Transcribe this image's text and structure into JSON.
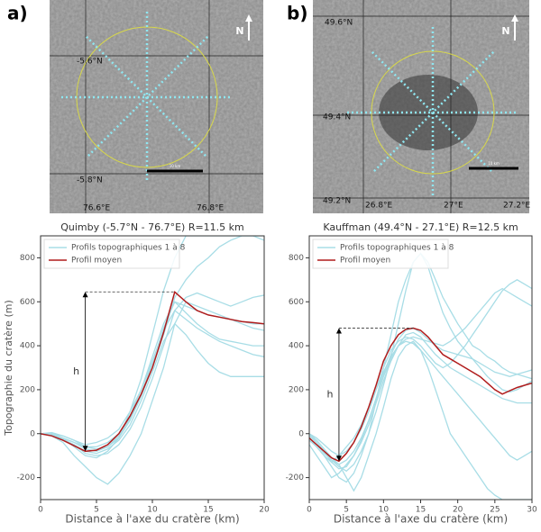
{
  "panels": [
    {
      "label": "a)",
      "north": "N",
      "scale": "10 km",
      "coords": [
        "-5.6°N",
        "-5.8°N",
        "76.6°E",
        "76.8°E"
      ]
    },
    {
      "label": "b)",
      "north": "N",
      "scale": "10 km",
      "coords": [
        "49.6°N",
        "49.4°N",
        "49.2°N",
        "26.8°E",
        "27°E",
        "27.2°E"
      ]
    }
  ],
  "chart_data": [
    {
      "type": "line",
      "title": "Quimby (-5.7°N - 76.7°E) R=11.5 km",
      "x_label": "Distance à l'axe du cratère (km)",
      "y_label": "Topographie du cratère (m)",
      "annotation": "h",
      "legend": "upper left",
      "xlim": [
        0,
        20
      ],
      "xticks": [
        0,
        5,
        10,
        15,
        20
      ],
      "ylim": [
        -300,
        900
      ],
      "yticks": [
        -200,
        0,
        200,
        400,
        600,
        800
      ],
      "x": [
        0,
        1,
        2,
        3,
        4,
        5,
        6,
        7,
        8,
        9,
        10,
        11,
        12,
        13,
        14,
        15,
        16,
        17,
        18,
        19,
        20
      ],
      "series": [
        {
          "name": "Profils topographiques 1 à 8",
          "color": "#a8dde6",
          "profiles": [
            [
              0,
              0,
              -20,
              -60,
              -100,
              -110,
              -80,
              -20,
              100,
              250,
              450,
              650,
              800,
              900,
              900,
              900,
              900,
              900,
              900,
              900,
              900
            ],
            [
              0,
              -10,
              -40,
              -100,
              -150,
              -200,
              -230,
              -180,
              -100,
              0,
              150,
              300,
              500,
              600,
              580,
              560,
              540,
              520,
              500,
              480,
              470
            ],
            [
              0,
              -5,
              -20,
              -40,
              -60,
              -60,
              -40,
              0,
              80,
              200,
              350,
              500,
              600,
              550,
              500,
              460,
              430,
              420,
              410,
              400,
              400
            ],
            [
              0,
              0,
              -10,
              -30,
              -50,
              -40,
              -20,
              20,
              100,
              200,
              330,
              470,
              560,
              520,
              480,
              450,
              420,
              400,
              380,
              360,
              350
            ],
            [
              0,
              -10,
              -30,
              -50,
              -80,
              -90,
              -70,
              -30,
              40,
              150,
              280,
              420,
              500,
              450,
              380,
              320,
              280,
              260,
              260,
              260,
              260
            ],
            [
              0,
              0,
              -20,
              -40,
              -70,
              -80,
              -60,
              -10,
              70,
              180,
              320,
              480,
              600,
              580,
              560,
              540,
              530,
              520,
              510,
              500,
              500
            ],
            [
              0,
              5,
              -10,
              -30,
              -60,
              -70,
              -60,
              -20,
              60,
              170,
              300,
              450,
              620,
              700,
              760,
              800,
              850,
              880,
              900,
              900,
              880
            ],
            [
              0,
              -5,
              -25,
              -50,
              -90,
              -100,
              -90,
              -50,
              20,
              120,
              250,
              400,
              560,
              620,
              640,
              620,
              600,
              580,
              600,
              620,
              630
            ]
          ]
        },
        {
          "name": "Profil moyen",
          "color": "#b01c1c",
          "values": [
            0,
            -10,
            -30,
            -55,
            -80,
            -75,
            -50,
            0,
            80,
            180,
            300,
            460,
            645,
            600,
            560,
            540,
            530,
            520,
            510,
            505,
            500
          ]
        }
      ]
    },
    {
      "type": "line",
      "title": "Kauffman (49.4°N - 27.1°E) R=12.5 km",
      "x_label": "Distance à l'axe du cratère (km)",
      "annotation": "h",
      "legend": "upper left",
      "xlim": [
        0,
        30
      ],
      "xticks": [
        0,
        5,
        10,
        15,
        20,
        25,
        30
      ],
      "ylim": [
        -300,
        900
      ],
      "yticks": [
        -200,
        0,
        200,
        400,
        600,
        800
      ],
      "x": [
        0,
        1,
        2,
        3,
        4,
        5,
        6,
        7,
        8,
        9,
        10,
        11,
        12,
        13,
        14,
        15,
        16,
        17,
        18,
        19,
        20,
        21,
        22,
        23,
        24,
        25,
        26,
        27,
        28,
        29,
        30
      ],
      "series": [
        {
          "name": "Profils topographiques 1 à 8",
          "color": "#a8dde6",
          "profiles": [
            [
              -20,
              -60,
              -100,
              -150,
              -200,
              -220,
              -180,
              -100,
              0,
              150,
              300,
              450,
              600,
              700,
              780,
              820,
              780,
              700,
              620,
              560,
              500,
              450,
              400,
              380,
              350,
              330,
              300,
              280,
              270,
              260,
              250
            ],
            [
              0,
              -20,
              -50,
              -80,
              -100,
              -80,
              -40,
              20,
              100,
              200,
              300,
              380,
              420,
              440,
              430,
              400,
              360,
              320,
              300,
              320,
              360,
              400,
              450,
              500,
              550,
              600,
              650,
              680,
              700,
              680,
              660
            ],
            [
              -10,
              -40,
              -80,
              -120,
              -150,
              -170,
              -140,
              -80,
              0,
              100,
              220,
              350,
              500,
              650,
              780,
              820,
              760,
              650,
              550,
              480,
              420,
              380,
              340,
              300,
              260,
              230,
              200,
              190,
              200,
              220,
              240
            ],
            [
              0,
              -30,
              -70,
              -110,
              -140,
              -200,
              -260,
              -200,
              -100,
              0,
              120,
              250,
              350,
              400,
              420,
              380,
              300,
              200,
              100,
              0,
              -50,
              -100,
              -150,
              -200,
              -250,
              -280,
              -300,
              -300,
              -300,
              -300,
              -300
            ],
            [
              -30,
              -60,
              -100,
              -130,
              -100,
              -60,
              -20,
              40,
              120,
              200,
              280,
              350,
              400,
              430,
              440,
              430,
              420,
              410,
              400,
              420,
              450,
              480,
              520,
              560,
              600,
              640,
              660,
              640,
              620,
              600,
              580
            ],
            [
              -50,
              -100,
              -150,
              -200,
              -180,
              -140,
              -100,
              -40,
              40,
              140,
              240,
              330,
              400,
              450,
              460,
              440,
              400,
              360,
              330,
              300,
              280,
              260,
              240,
              220,
              200,
              180,
              160,
              150,
              140,
              140,
              140
            ],
            [
              0,
              -40,
              -80,
              -130,
              -160,
              -150,
              -100,
              -30,
              60,
              160,
              260,
              340,
              400,
              420,
              410,
              380,
              340,
              300,
              260,
              220,
              180,
              140,
              100,
              60,
              20,
              -20,
              -60,
              -100,
              -120,
              -100,
              -80
            ],
            [
              -20,
              -50,
              -90,
              -120,
              -140,
              -120,
              -80,
              -20,
              60,
              160,
              270,
              360,
              430,
              470,
              480,
              460,
              430,
              400,
              380,
              370,
              360,
              350,
              340,
              320,
              300,
              280,
              270,
              260,
              270,
              280,
              290
            ]
          ]
        },
        {
          "name": "Profil moyen",
          "color": "#b01c1c",
          "values": [
            -20,
            -50,
            -80,
            -110,
            -125,
            -90,
            -40,
            30,
            120,
            220,
            330,
            400,
            450,
            475,
            480,
            470,
            440,
            400,
            360,
            340,
            320,
            300,
            280,
            260,
            230,
            200,
            180,
            195,
            210,
            220,
            230
          ]
        }
      ]
    }
  ]
}
